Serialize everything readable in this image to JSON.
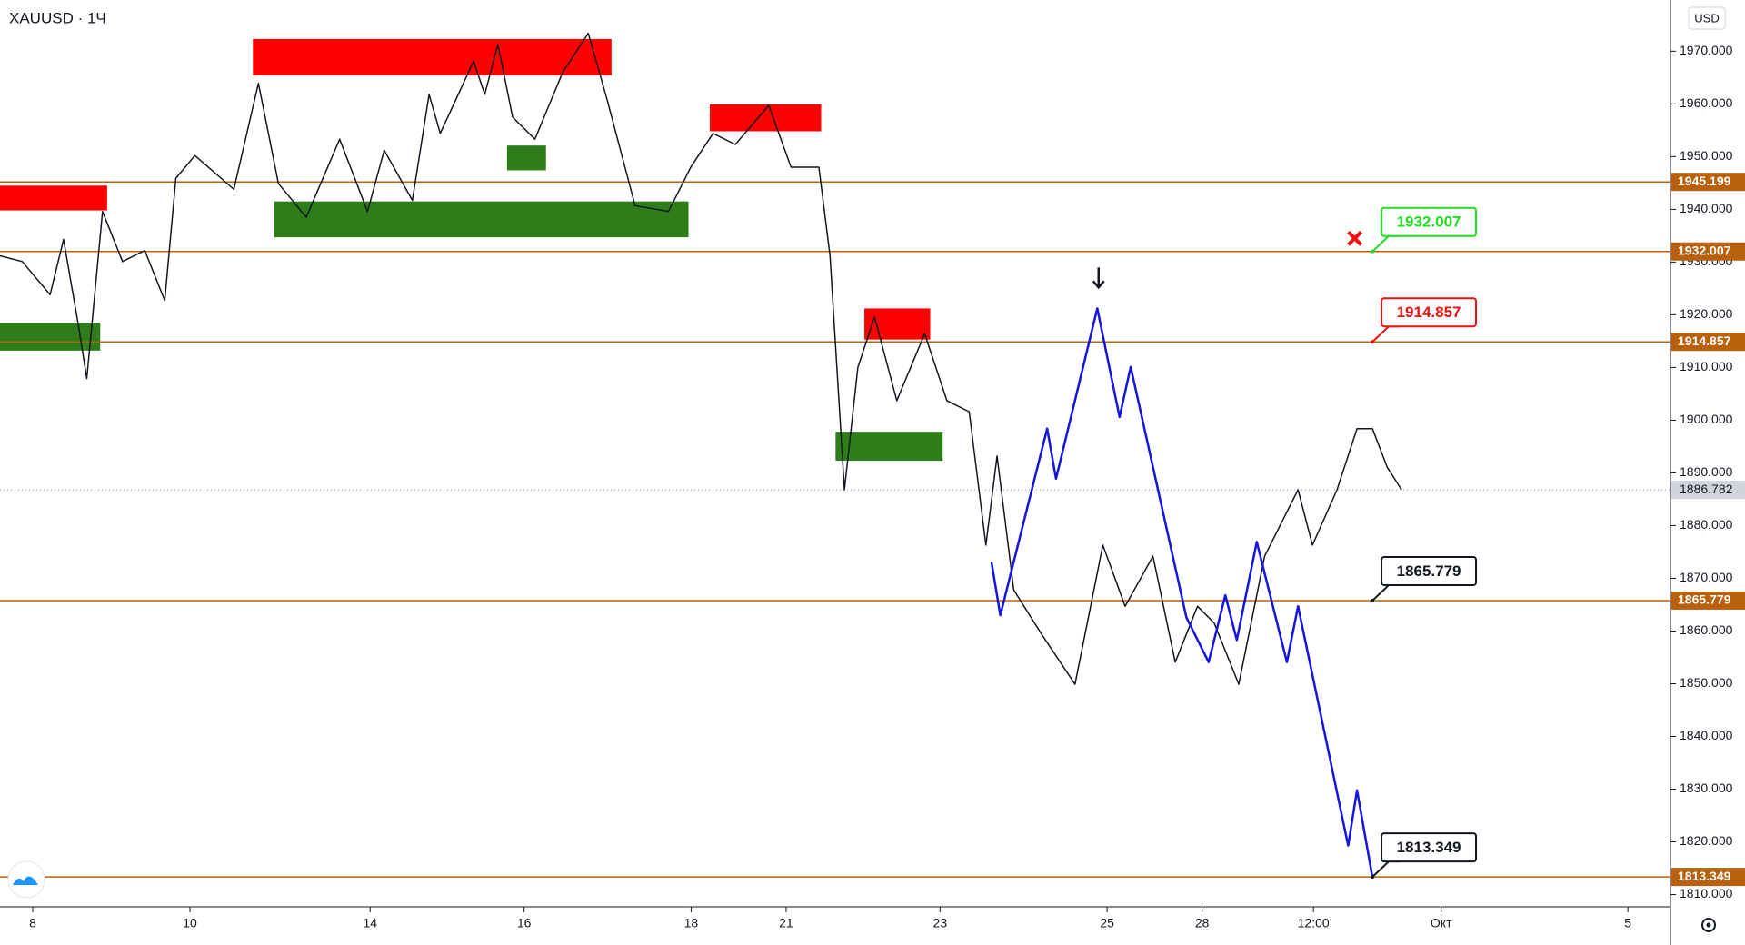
{
  "chart_data": {
    "type": "line",
    "title": "XAUUSD · 1Ч",
    "currency": "USD",
    "xlim": [
      0,
      510
    ],
    "ylim": [
      1807.68,
      1979.71
    ],
    "xticks": [
      {
        "value": 10,
        "label": "8"
      },
      {
        "value": 58,
        "label": "10"
      },
      {
        "value": 113,
        "label": "14"
      },
      {
        "value": 160,
        "label": "16"
      },
      {
        "value": 211,
        "label": "18"
      },
      {
        "value": 240,
        "label": "21"
      },
      {
        "value": 287,
        "label": "23"
      },
      {
        "value": 338,
        "label": "25"
      },
      {
        "value": 367,
        "label": "28"
      },
      {
        "value": 401,
        "label": "12:00"
      },
      {
        "value": 440,
        "label": "Окт"
      },
      {
        "value": 497,
        "label": "5"
      }
    ],
    "yticks": [
      {
        "value": 1810,
        "label": "1810.000"
      },
      {
        "value": 1820,
        "label": "1820.000"
      },
      {
        "value": 1830,
        "label": "1830.000"
      },
      {
        "value": 1840,
        "label": "1840.000"
      },
      {
        "value": 1850,
        "label": "1850.000"
      },
      {
        "value": 1860,
        "label": "1860.000"
      },
      {
        "value": 1870,
        "label": "1870.000"
      },
      {
        "value": 1880,
        "label": "1880.000"
      },
      {
        "value": 1890,
        "label": "1890.000"
      },
      {
        "value": 1900,
        "label": "1900.000"
      },
      {
        "value": 1910,
        "label": "1910.000"
      },
      {
        "value": 1920,
        "label": "1920.000"
      },
      {
        "value": 1930,
        "label": "1930.000"
      },
      {
        "value": 1940,
        "label": "1940.000"
      },
      {
        "value": 1950,
        "label": "1950.000"
      },
      {
        "value": 1960,
        "label": "1960.000"
      },
      {
        "value": 1970,
        "label": "1970.000"
      }
    ],
    "series": [
      {
        "color": "#131722",
        "x": [
          0,
          6.8,
          15.3,
          19.4,
          23.8,
          26.5,
          31.3,
          37.4,
          44.2,
          50.3,
          53.7,
          59.5,
          71.4,
          78.9,
          85.0,
          93.5,
          103.7,
          112.2,
          117.3,
          125.9,
          131.0,
          134.4,
          144.6,
          148.0,
          152.0,
          156.5,
          163.3,
          171.8,
          179.6,
          185.4,
          193.9,
          204.1,
          210.9,
          217.7,
          224.5,
          234.7,
          241.5,
          250.0,
          253.4,
          257.8,
          261.9,
          267.0,
          273.8,
          282.3,
          289.1,
          295.9,
          301.0,
          304.4,
          309.5,
          318.0,
          328.2,
          336.7,
          343.5,
          352.0,
          358.8,
          365.6,
          370.7,
          378.2,
          386.1,
          396.3,
          400.7,
          408.2,
          414.3,
          419.0,
          423.5,
          427.9
        ],
        "values": [
          1931.2,
          1930.1,
          1923.8,
          1934.3,
          1918.5,
          1907.9,
          1939.6,
          1930.1,
          1932.2,
          1922.7,
          1945.9,
          1950.2,
          1943.8,
          1963.9,
          1944.9,
          1938.5,
          1953.3,
          1939.6,
          1951.2,
          1941.7,
          1961.8,
          1954.4,
          1968.1,
          1961.8,
          1971.3,
          1957.5,
          1953.3,
          1966.0,
          1973.4,
          1960.7,
          1940.7,
          1939.6,
          1948.0,
          1954.4,
          1952.3,
          1959.7,
          1948.0,
          1948.0,
          1931.2,
          1886.8,
          1910.0,
          1919.6,
          1903.7,
          1916.4,
          1903.7,
          1901.6,
          1876.3,
          1893.2,
          1867.8,
          1859.4,
          1849.9,
          1876.3,
          1864.7,
          1874.2,
          1854.1,
          1864.7,
          1861.5,
          1849.9,
          1874.2,
          1886.8,
          1876.3,
          1886.8,
          1898.4,
          1898.4,
          1891.1,
          1886.8
        ]
      },
      {
        "color": "#1515e0",
        "x": [
          302.7,
          305.4,
          319.7,
          322.4,
          335.0,
          341.8,
          345.2,
          362.2,
          369.0,
          374.1,
          377.6,
          383.7,
          392.9,
          396.3,
          411.6,
          414.3,
          419.0
        ],
        "values": [
          1873.1,
          1863.0,
          1898.4,
          1888.9,
          1921.2,
          1900.6,
          1910.1,
          1862.6,
          1854.1,
          1866.8,
          1858.3,
          1876.9,
          1854.1,
          1864.7,
          1819.3,
          1829.8,
          1813.3
        ]
      }
    ],
    "zones": [
      {
        "x": [
          0,
          32.7
        ],
        "y": [
          1939.8,
          1944.5
        ],
        "color": "#ff0000"
      },
      {
        "x": [
          77.2,
          186.7
        ],
        "y": [
          1965.4,
          1972.3
        ],
        "color": "#ff0000"
      },
      {
        "x": [
          216.7,
          250.7
        ],
        "y": [
          1954.8,
          1959.9
        ],
        "color": "#ff0000"
      },
      {
        "x": [
          263.9,
          284.0
        ],
        "y": [
          1915.3,
          1921.2
        ],
        "color": "#ff0000"
      },
      {
        "x": [
          0,
          30.6
        ],
        "y": [
          1913.2,
          1918.5
        ],
        "color": "#2e7d1a"
      },
      {
        "x": [
          83.7,
          210.2
        ],
        "y": [
          1934.7,
          1941.5
        ],
        "color": "#2e7d1a"
      },
      {
        "x": [
          154.8,
          166.7
        ],
        "y": [
          1947.4,
          1952.1
        ],
        "color": "#2e7d1a"
      },
      {
        "x": [
          255.1,
          287.8
        ],
        "y": [
          1892.3,
          1897.8
        ],
        "color": "#2e7d1a"
      }
    ],
    "levels": [
      1945.199,
      1932.007,
      1914.857,
      1865.779,
      1813.349
    ],
    "level_color": "#b8600b",
    "callouts": [
      {
        "x": 419,
        "value": 1932.007,
        "color": "#22dd22"
      },
      {
        "x": 419,
        "value": 1914.857,
        "color": "#ee1111"
      },
      {
        "x": 419,
        "value": 1865.779,
        "color": "#131722"
      },
      {
        "x": 419,
        "value": 1813.349,
        "color": "#131722"
      }
    ],
    "last_price": 1886.782
  }
}
